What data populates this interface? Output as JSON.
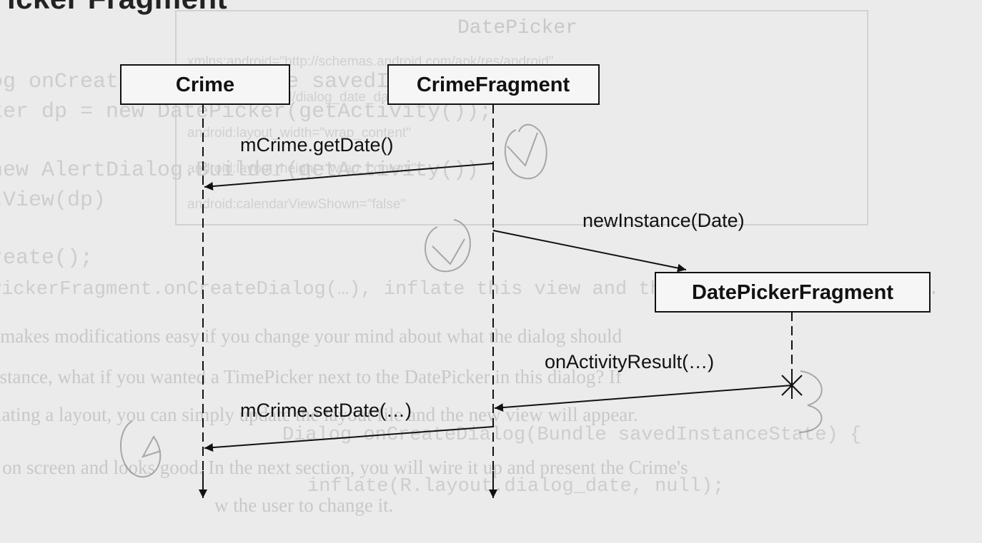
{
  "header": {
    "partial_title": "icker Fragment"
  },
  "participants": [
    {
      "id": "crime",
      "label": "Crime"
    },
    {
      "id": "crime_fragment",
      "label": "CrimeFragment"
    },
    {
      "id": "date_picker_fragment",
      "label": "DatePickerFragment"
    }
  ],
  "messages": [
    {
      "id": "get_date",
      "label": "mCrime.getDate()",
      "from": "crime_fragment",
      "to": "crime"
    },
    {
      "id": "new_instance",
      "label": "newInstance(Date)",
      "from": "crime_fragment",
      "to": "date_picker_fragment"
    },
    {
      "id": "on_activity_result",
      "label": "onActivityResult(…)",
      "from": "date_picker_fragment",
      "to": "crime_fragment"
    },
    {
      "id": "set_date",
      "label": "mCrime.setDate(…)",
      "from": "crime_fragment",
      "to": "crime"
    }
  ],
  "colors": {
    "background": "#ebebeb",
    "ink": "#111111",
    "ghost": "#cdcdcd"
  },
  "show_through": {
    "panel_title": "DatePicker",
    "code_lines": [
      "og onCreateDialog(Bundle savedInstanceState) {",
      "ker dp = new  DatePicker(getActivity());",
      "new AlertDialog.Builder(getActivity())",
      "tView(dp)",
      "reate();"
    ],
    "panel_lines": [
      "xmlns:android=\"http://schemas.android.com/apk/res/android\"",
      "android:id=\"@+id/dialog_date_datePicker\"",
      "android:layout_width=\"wrap_content\"",
      "android:layout_height=\"wrap_content\"",
      "android:calendarViewShown=\"false\""
    ],
    "lower_lines": [
      "PickerFragment.onCreateDialog(…), inflate this view and then set it on the dialog.",
      "t makes modifications easy if you change your mind about what the dialog should",
      "nstance, what if you wanted a TimePicker next to the DatePicker in this dialog? If",
      "flating a layout, you can simply update the layout file and the new view will appear.",
      "Dialog onCreateDialog(Bundle savedInstanceState) {",
      "s on screen and looks good. In the next section, you will wire it up and present the Crime's",
      "inflate(R.layout.dialog_date, null);",
      "w the user to change it."
    ]
  }
}
